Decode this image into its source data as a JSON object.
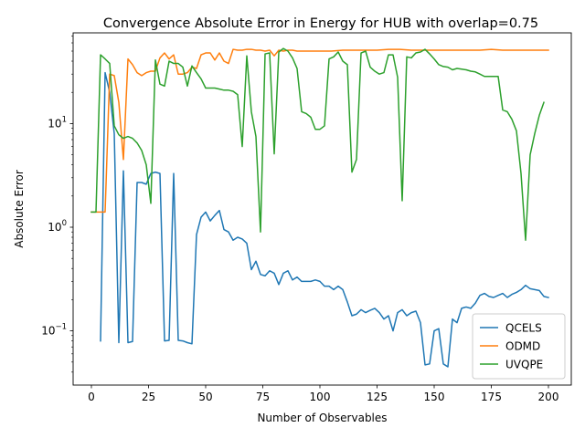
{
  "chart_data": {
    "type": "line",
    "title": "Convergence Absolute Error in Energy for HUB with overlap=0.75",
    "xlabel": "Number of Observables",
    "ylabel": "Absolute Error",
    "yscale": "log",
    "xlim": [
      -8,
      210
    ],
    "ylim": [
      0.03,
      75
    ],
    "xticks": [
      0,
      25,
      50,
      75,
      100,
      125,
      150,
      175,
      200
    ],
    "yticks": [
      {
        "value": 0.1,
        "base": "10",
        "exp": "−1"
      },
      {
        "value": 1,
        "base": "10",
        "exp": "0"
      },
      {
        "value": 10,
        "base": "10",
        "exp": "1"
      }
    ],
    "grid": false,
    "legend_position": "lower-right",
    "series": [
      {
        "name": "QCELS",
        "color": "#1f77b4",
        "x": [
          4,
          6,
          8,
          10,
          12,
          14,
          16,
          18,
          20,
          22,
          24,
          26,
          28,
          30,
          32,
          34,
          36,
          38,
          40,
          42,
          44,
          46,
          48,
          50,
          52,
          54,
          56,
          58,
          60,
          62,
          64,
          66,
          68,
          70,
          72,
          74,
          76,
          78,
          80,
          82,
          84,
          86,
          88,
          90,
          92,
          94,
          96,
          98,
          100,
          102,
          104,
          106,
          108,
          110,
          112,
          114,
          116,
          118,
          120,
          122,
          124,
          126,
          128,
          130,
          132,
          134,
          136,
          138,
          140,
          142,
          144,
          146,
          148,
          150,
          152,
          154,
          156,
          158,
          160,
          162,
          164,
          166,
          168,
          170,
          172,
          174,
          176,
          178,
          180,
          182,
          184,
          186,
          188,
          190,
          192,
          194,
          196,
          198,
          200
        ],
        "y": [
          0.08,
          31,
          20,
          8,
          0.077,
          3.5,
          0.077,
          0.079,
          2.7,
          2.7,
          2.6,
          3.3,
          3.4,
          3.3,
          0.08,
          0.081,
          3.3,
          0.081,
          0.08,
          0.077,
          0.075,
          0.85,
          1.25,
          1.4,
          1.15,
          1.3,
          1.45,
          0.95,
          0.9,
          0.75,
          0.8,
          0.77,
          0.7,
          0.39,
          0.47,
          0.35,
          0.34,
          0.38,
          0.36,
          0.28,
          0.36,
          0.38,
          0.31,
          0.33,
          0.3,
          0.3,
          0.3,
          0.31,
          0.3,
          0.27,
          0.27,
          0.25,
          0.27,
          0.25,
          0.19,
          0.14,
          0.145,
          0.16,
          0.15,
          0.158,
          0.165,
          0.15,
          0.13,
          0.14,
          0.1,
          0.15,
          0.16,
          0.14,
          0.15,
          0.155,
          0.12,
          0.047,
          0.048,
          0.1,
          0.105,
          0.048,
          0.045,
          0.13,
          0.12,
          0.165,
          0.17,
          0.165,
          0.185,
          0.22,
          0.23,
          0.215,
          0.21,
          0.22,
          0.23,
          0.21,
          0.225,
          0.235,
          0.25,
          0.275,
          0.255,
          0.25,
          0.245,
          0.215,
          0.21
        ]
      },
      {
        "name": "ODMD",
        "color": "#ff7f0e",
        "x": [
          0,
          2,
          4,
          6,
          8,
          10,
          12,
          14,
          16,
          18,
          20,
          22,
          24,
          26,
          28,
          30,
          32,
          34,
          36,
          38,
          40,
          42,
          44,
          46,
          48,
          50,
          52,
          54,
          56,
          58,
          60,
          62,
          64,
          66,
          68,
          70,
          72,
          74,
          76,
          78,
          80,
          82,
          84,
          86,
          88,
          90,
          95,
          100,
          105,
          110,
          115,
          120,
          125,
          130,
          135,
          140,
          145,
          150,
          155,
          160,
          165,
          170,
          175,
          180,
          185,
          190,
          195,
          200
        ],
        "y": [
          1.4,
          1.4,
          1.4,
          1.4,
          30,
          29,
          16,
          4.5,
          42,
          37,
          31,
          29,
          31,
          32,
          32,
          43,
          48,
          42,
          46,
          30,
          30,
          31,
          35,
          34,
          46,
          48,
          48,
          41,
          48,
          40,
          38,
          52,
          51,
          51,
          52,
          52,
          51,
          51,
          50,
          51,
          45,
          51,
          50,
          51,
          51,
          50,
          50,
          50,
          50,
          51,
          51,
          51,
          51,
          52,
          52,
          51,
          51,
          51,
          51,
          51,
          51,
          51,
          52,
          51,
          51,
          51,
          51,
          51
        ]
      },
      {
        "name": "UVQPE",
        "color": "#2ca02c",
        "x": [
          0,
          2,
          4,
          6,
          8,
          10,
          12,
          14,
          16,
          18,
          20,
          22,
          24,
          26,
          28,
          30,
          32,
          34,
          36,
          38,
          40,
          42,
          44,
          46,
          48,
          50,
          52,
          54,
          56,
          58,
          60,
          62,
          64,
          66,
          68,
          70,
          72,
          74,
          76,
          78,
          80,
          82,
          84,
          86,
          88,
          90,
          92,
          94,
          96,
          98,
          100,
          102,
          104,
          106,
          108,
          110,
          112,
          114,
          116,
          118,
          120,
          122,
          124,
          126,
          128,
          130,
          132,
          134,
          136,
          138,
          140,
          142,
          144,
          146,
          148,
          150,
          152,
          154,
          156,
          158,
          160,
          162,
          164,
          166,
          168,
          170,
          172,
          174,
          176,
          178,
          180,
          182,
          184,
          186,
          188,
          190,
          192,
          194,
          196,
          198
        ],
        "y": [
          1.4,
          1.4,
          46,
          42,
          38,
          9.5,
          7.8,
          7.2,
          7.5,
          7.2,
          6.5,
          5.5,
          4,
          1.7,
          41,
          24,
          23,
          40,
          38,
          38,
          35,
          23,
          36,
          31,
          27,
          22,
          22,
          22,
          21.5,
          21,
          21,
          20.5,
          19,
          6,
          45,
          13,
          7.5,
          0.9,
          47,
          48,
          5.1,
          49,
          53,
          50,
          43,
          34,
          13,
          12.5,
          11.5,
          8.8,
          8.8,
          9.5,
          42,
          44,
          49,
          40,
          37,
          3.4,
          4.5,
          48,
          50,
          35,
          32,
          30,
          31,
          46,
          46,
          28,
          1.8,
          44,
          43,
          48,
          49,
          52,
          47,
          42,
          37,
          35.5,
          35,
          33,
          34,
          33.5,
          33,
          32,
          31.5,
          30,
          28.5,
          28.5,
          28.5,
          28.5,
          13.5,
          13,
          11,
          8.5,
          3.3,
          0.75,
          5,
          8,
          12,
          16
        ]
      }
    ]
  }
}
